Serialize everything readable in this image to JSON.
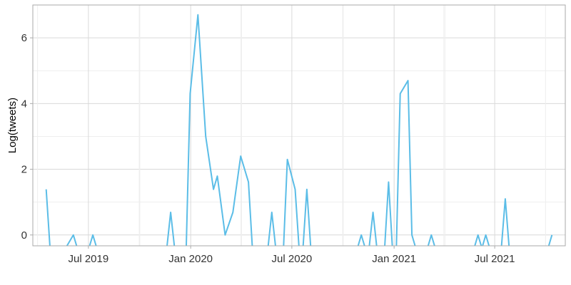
{
  "colors": {
    "line": "#5bbde7",
    "grid_major": "#d9d9d9",
    "grid_minor": "#eeeeee",
    "panel_border": "#aaaaaa",
    "axis_text": "#333333"
  },
  "chart_data": {
    "type": "line",
    "title": "",
    "xlabel": "",
    "ylabel": "Log(tweets)",
    "grid": true,
    "legend": "none",
    "x_tick_labels": [
      "Jul 2019",
      "Jan 2020",
      "Jul 2020",
      "Jan 2021",
      "Jul 2021"
    ],
    "y_tick_values": [
      0,
      2,
      4,
      6
    ],
    "xlim": [
      "2019-03-23",
      "2021-11-05"
    ],
    "ylim": [
      -0.33,
      7.0
    ],
    "series": [
      {
        "points": [
          [
            "2019-04-16",
            1.39
          ],
          [
            "2019-04-23",
            -0.4
          ],
          [
            "2019-05-21",
            -0.4
          ],
          [
            "2019-06-04",
            0.0
          ],
          [
            "2019-06-11",
            -0.4
          ],
          [
            "2019-07-02",
            -0.4
          ],
          [
            "2019-07-09",
            0.0
          ],
          [
            "2019-07-16",
            -0.4
          ],
          [
            "2019-11-19",
            -0.4
          ],
          [
            "2019-11-26",
            0.69
          ],
          [
            "2019-12-03",
            -0.4
          ],
          [
            "2019-12-24",
            -0.4
          ],
          [
            "2019-12-31",
            4.3
          ],
          [
            "2020-01-14",
            6.7
          ],
          [
            "2020-01-28",
            3.0
          ],
          [
            "2020-02-11",
            1.39
          ],
          [
            "2020-02-18",
            1.79
          ],
          [
            "2020-03-03",
            0.0
          ],
          [
            "2020-03-17",
            0.69
          ],
          [
            "2020-03-31",
            2.4
          ],
          [
            "2020-04-14",
            1.61
          ],
          [
            "2020-04-21",
            -0.4
          ],
          [
            "2020-05-19",
            -0.4
          ],
          [
            "2020-05-26",
            0.69
          ],
          [
            "2020-06-02",
            -0.4
          ],
          [
            "2020-06-16",
            -0.4
          ],
          [
            "2020-06-23",
            2.3
          ],
          [
            "2020-07-07",
            1.39
          ],
          [
            "2020-07-14",
            -0.4
          ],
          [
            "2020-07-21",
            -0.4
          ],
          [
            "2020-07-28",
            1.39
          ],
          [
            "2020-08-04",
            -0.4
          ],
          [
            "2020-10-27",
            -0.4
          ],
          [
            "2020-11-03",
            0.0
          ],
          [
            "2020-11-10",
            -0.4
          ],
          [
            "2020-11-17",
            -0.4
          ],
          [
            "2020-11-24",
            0.69
          ],
          [
            "2020-12-01",
            -0.4
          ],
          [
            "2020-12-15",
            -0.4
          ],
          [
            "2020-12-22",
            1.61
          ],
          [
            "2020-12-29",
            -0.4
          ],
          [
            "2021-01-05",
            -0.4
          ],
          [
            "2021-01-12",
            4.3
          ],
          [
            "2021-01-26",
            4.7
          ],
          [
            "2021-02-02",
            0.0
          ],
          [
            "2021-02-09",
            -0.4
          ],
          [
            "2021-03-02",
            -0.4
          ],
          [
            "2021-03-09",
            0.0
          ],
          [
            "2021-03-16",
            -0.4
          ],
          [
            "2021-05-25",
            -0.4
          ],
          [
            "2021-06-01",
            0.0
          ],
          [
            "2021-06-08",
            -0.4
          ],
          [
            "2021-06-15",
            0.0
          ],
          [
            "2021-06-22",
            -0.4
          ],
          [
            "2021-07-13",
            -0.4
          ],
          [
            "2021-07-20",
            1.1
          ],
          [
            "2021-07-27",
            -0.4
          ],
          [
            "2021-10-05",
            -0.4
          ],
          [
            "2021-10-12",
            0.0
          ]
        ]
      }
    ]
  }
}
